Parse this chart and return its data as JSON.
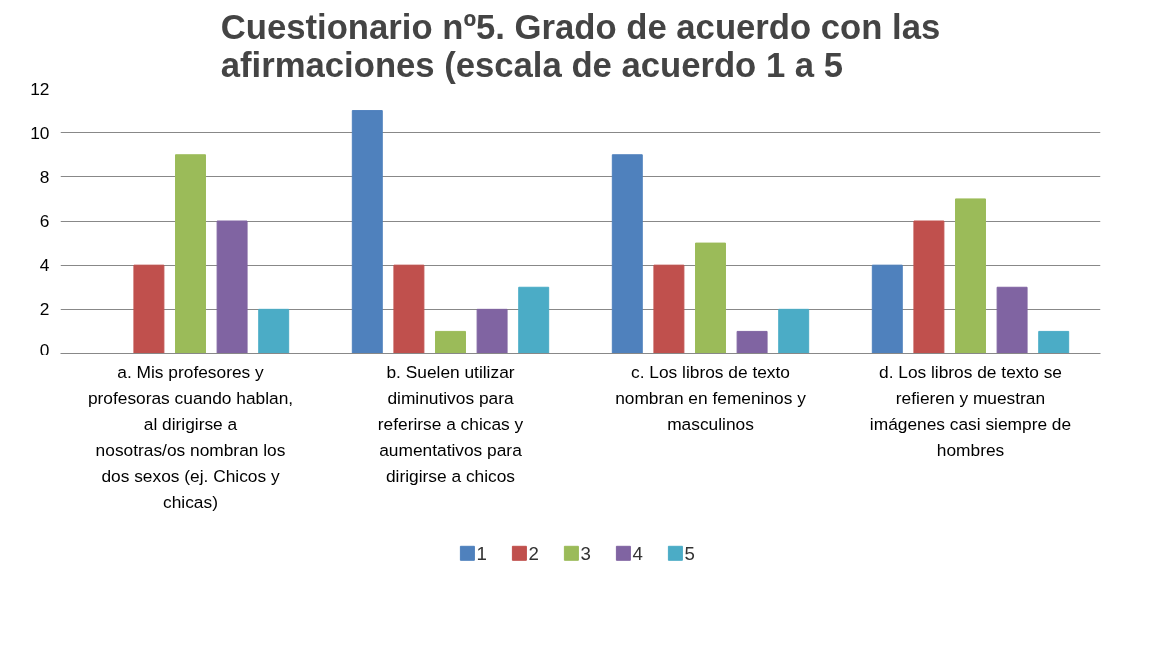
{
  "chart_data": {
    "type": "bar",
    "title": "Cuestionario nº5. Grado de acuerdo con las afirmaciones (escala de acuerdo 1 a 5",
    "categories": [
      "a. Mis profesores y profesoras cuando hablan, al dirigirse a nosotras/os nombran los dos sexos (ej. Chicos y chicas)",
      "b. Suelen utilizar diminutivos para referirse a chicas y aumentativos para dirigirse a chicos",
      "c. Los libros de texto nombran en femeninos y masculinos",
      "d. Los libros de texto se refieren y muestran imágenes casi siempre de hombres"
    ],
    "series": [
      {
        "name": "1",
        "color": "#4f81bd",
        "values": [
          0,
          11,
          9,
          4
        ]
      },
      {
        "name": "2",
        "color": "#c0504d",
        "values": [
          4,
          4,
          4,
          6
        ]
      },
      {
        "name": "3",
        "color": "#9bbb59",
        "values": [
          9,
          1,
          5,
          7
        ]
      },
      {
        "name": "4",
        "color": "#8064a2",
        "values": [
          6,
          2,
          1,
          3
        ]
      },
      {
        "name": "5",
        "color": "#4bacc6",
        "values": [
          2,
          3,
          2,
          1
        ]
      }
    ],
    "ylim": [
      0,
      12
    ],
    "yticks": [
      0,
      2,
      4,
      6,
      8,
      10,
      12
    ],
    "grid": "y",
    "legend": "bottom"
  }
}
